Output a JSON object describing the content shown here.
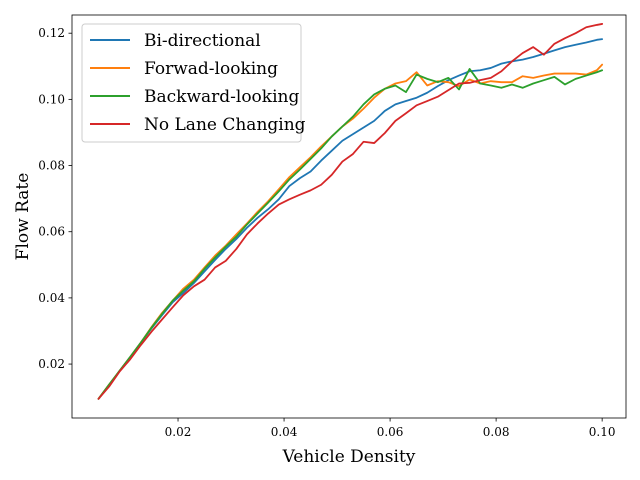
{
  "chart_data": {
    "type": "line",
    "title": "",
    "xlabel": "Vehicle Density",
    "ylabel": "Flow Rate",
    "xlim": [
      0.0,
      0.1045
    ],
    "ylim": [
      0.0037,
      0.1255
    ],
    "xticks": [
      0.02,
      0.04,
      0.06,
      0.08,
      0.1
    ],
    "xtick_labels": [
      "0.02",
      "0.04",
      "0.06",
      "0.08",
      "0.10"
    ],
    "yticks": [
      0.02,
      0.04,
      0.06,
      0.08,
      0.1,
      0.12
    ],
    "ytick_labels": [
      "0.02",
      "0.04",
      "0.06",
      "0.08",
      "0.10",
      "0.12"
    ],
    "grid": false,
    "legend_position": "top-left",
    "x": [
      0.005,
      0.007,
      0.009,
      0.011,
      0.013,
      0.015,
      0.017,
      0.019,
      0.021,
      0.023,
      0.025,
      0.027,
      0.029,
      0.031,
      0.033,
      0.035,
      0.037,
      0.039,
      0.041,
      0.043,
      0.045,
      0.047,
      0.049,
      0.051,
      0.053,
      0.055,
      0.057,
      0.059,
      0.061,
      0.063,
      0.065,
      0.067,
      0.069,
      0.071,
      0.073,
      0.075,
      0.077,
      0.079,
      0.081,
      0.083,
      0.085,
      0.087,
      0.089,
      0.091,
      0.093,
      0.095,
      0.097,
      0.099,
      0.1
    ],
    "series": [
      {
        "name": "Bi-directional",
        "color": "#1f77b4",
        "values": [
          0.0095,
          0.0135,
          0.018,
          0.0222,
          0.0265,
          0.0308,
          0.0348,
          0.0387,
          0.0415,
          0.0445,
          0.048,
          0.0515,
          0.0548,
          0.0578,
          0.0612,
          0.0642,
          0.0668,
          0.0698,
          0.0738,
          0.0762,
          0.0782,
          0.0815,
          0.0845,
          0.0875,
          0.0895,
          0.0915,
          0.0935,
          0.0965,
          0.0985,
          0.0995,
          0.1005,
          0.102,
          0.104,
          0.1058,
          0.1072,
          0.1085,
          0.1088,
          0.1095,
          0.1108,
          0.1115,
          0.112,
          0.1128,
          0.1138,
          0.1148,
          0.1158,
          0.1165,
          0.1172,
          0.118,
          0.1182
        ]
      },
      {
        "name": "Forwad-looking",
        "color": "#ff7f0e",
        "values": [
          0.0095,
          0.0138,
          0.018,
          0.0222,
          0.0265,
          0.0312,
          0.0355,
          0.0392,
          0.0428,
          0.0455,
          0.0492,
          0.0528,
          0.0558,
          0.0592,
          0.0625,
          0.066,
          0.0692,
          0.0728,
          0.0765,
          0.0795,
          0.0825,
          0.0858,
          0.0888,
          0.0918,
          0.0942,
          0.0972,
          0.1005,
          0.1032,
          0.1048,
          0.1055,
          0.1082,
          0.1042,
          0.1055,
          0.1052,
          0.104,
          0.106,
          0.1048,
          0.1055,
          0.1052,
          0.1052,
          0.107,
          0.1065,
          0.1072,
          0.1078,
          0.1078,
          0.1078,
          0.1075,
          0.1088,
          0.1105
        ]
      },
      {
        "name": "Backward-looking",
        "color": "#2ca02c",
        "values": [
          0.0095,
          0.0138,
          0.018,
          0.0222,
          0.0265,
          0.031,
          0.0352,
          0.0392,
          0.0422,
          0.045,
          0.0488,
          0.0522,
          0.0555,
          0.0585,
          0.0622,
          0.0655,
          0.0688,
          0.0722,
          0.0758,
          0.0788,
          0.082,
          0.0852,
          0.0888,
          0.0918,
          0.0948,
          0.0985,
          0.1015,
          0.1032,
          0.1042,
          0.1022,
          0.1075,
          0.1062,
          0.1052,
          0.1065,
          0.103,
          0.1092,
          0.1048,
          0.1042,
          0.1035,
          0.1045,
          0.1035,
          0.1048,
          0.1058,
          0.1068,
          0.1045,
          0.1062,
          0.1072,
          0.1082,
          0.1088
        ]
      },
      {
        "name": "No Lane Changing",
        "color": "#d62728",
        "values": [
          0.0095,
          0.0132,
          0.0178,
          0.0215,
          0.0258,
          0.0298,
          0.0335,
          0.0372,
          0.0408,
          0.0435,
          0.0455,
          0.0492,
          0.0512,
          0.0548,
          0.0592,
          0.0625,
          0.0655,
          0.0682,
          0.0698,
          0.0712,
          0.0725,
          0.0742,
          0.0772,
          0.0812,
          0.0835,
          0.0872,
          0.0868,
          0.0898,
          0.0935,
          0.0958,
          0.0982,
          0.0995,
          0.1008,
          0.1028,
          0.1048,
          0.105,
          0.1058,
          0.1065,
          0.1085,
          0.1115,
          0.114,
          0.1158,
          0.1135,
          0.1168,
          0.1185,
          0.12,
          0.1218,
          0.1225,
          0.1228
        ]
      }
    ]
  }
}
